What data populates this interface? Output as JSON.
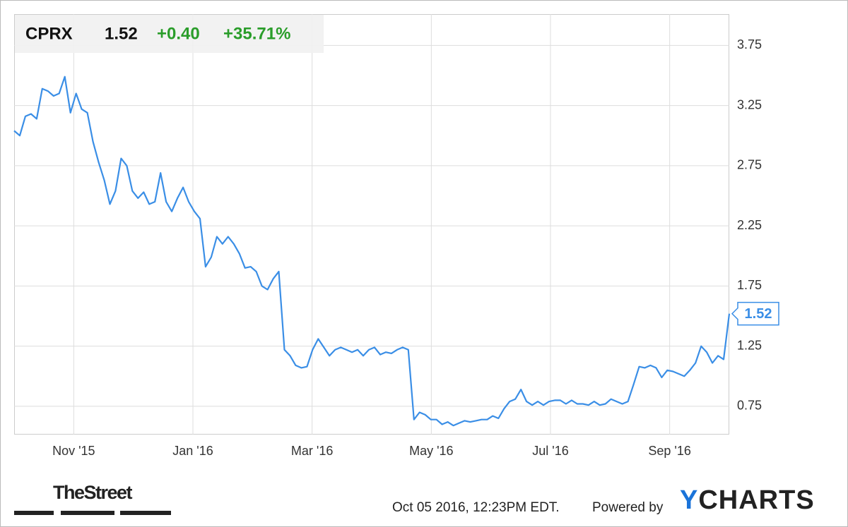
{
  "chart_data": {
    "type": "line",
    "header": {
      "ticker": "CPRX",
      "price": "1.52",
      "change": "+0.40",
      "change_pct": "+35.71%"
    },
    "values": [
      3.04,
      3.0,
      3.16,
      3.18,
      3.14,
      3.39,
      3.37,
      3.33,
      3.35,
      3.49,
      3.19,
      3.35,
      3.22,
      3.19,
      2.95,
      2.78,
      2.63,
      2.43,
      2.54,
      2.81,
      2.75,
      2.54,
      2.48,
      2.53,
      2.43,
      2.45,
      2.69,
      2.45,
      2.37,
      2.48,
      2.57,
      2.45,
      2.37,
      2.31,
      1.91,
      1.99,
      2.16,
      2.1,
      2.16,
      2.1,
      2.02,
      1.9,
      1.91,
      1.87,
      1.75,
      1.72,
      1.81,
      1.87,
      1.22,
      1.17,
      1.09,
      1.07,
      1.08,
      1.22,
      1.31,
      1.24,
      1.17,
      1.22,
      1.24,
      1.22,
      1.2,
      1.22,
      1.17,
      1.22,
      1.24,
      1.18,
      1.2,
      1.19,
      1.22,
      1.24,
      1.22,
      0.64,
      0.7,
      0.68,
      0.64,
      0.64,
      0.6,
      0.62,
      0.59,
      0.61,
      0.63,
      0.62,
      0.63,
      0.64,
      0.64,
      0.67,
      0.65,
      0.73,
      0.79,
      0.81,
      0.89,
      0.79,
      0.76,
      0.79,
      0.76,
      0.79,
      0.8,
      0.8,
      0.77,
      0.8,
      0.77,
      0.77,
      0.76,
      0.79,
      0.76,
      0.77,
      0.81,
      0.79,
      0.77,
      0.79,
      0.93,
      1.08,
      1.07,
      1.09,
      1.07,
      0.99,
      1.05,
      1.04,
      1.02,
      1.0,
      1.05,
      1.11,
      1.25,
      1.2,
      1.11,
      1.17,
      1.14,
      1.52
    ],
    "color": "#3a8ee6",
    "xlim": [
      "2015-10",
      "2016-10"
    ],
    "xticks": [
      {
        "value": "2015-11",
        "label": "Nov '15"
      },
      {
        "value": "2016-01",
        "label": "Jan '16"
      },
      {
        "value": "2016-03",
        "label": "Mar '16"
      },
      {
        "value": "2016-05",
        "label": "May '16"
      },
      {
        "value": "2016-07",
        "label": "Jul '16"
      },
      {
        "value": "2016-09",
        "label": "Sep '16"
      }
    ],
    "ylim": [
      0.515,
      4.01
    ],
    "yticks": [
      0.75,
      1.25,
      1.75,
      2.25,
      2.75,
      3.25,
      3.75
    ],
    "grid": true,
    "footer": {
      "source_logo": "TheStreet",
      "timestamp": "Oct 05 2016, 12:23PM EDT.",
      "powered_by": "Powered by",
      "brand": "YCHARTS"
    }
  }
}
